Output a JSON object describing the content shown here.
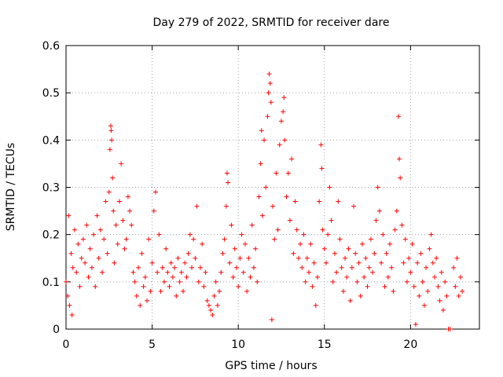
{
  "chart_data": {
    "type": "scatter",
    "title": "Day 279 of 2022, SRMTID for receiver dare",
    "xlabel": "GPS time / hours",
    "ylabel": "SRMTID / TECUs",
    "xlim": [
      0,
      24
    ],
    "ylim": [
      0,
      0.6
    ],
    "xticks": [
      0,
      5,
      10,
      15,
      20
    ],
    "yticks": [
      0,
      0.1,
      0.2,
      0.3,
      0.4,
      0.5,
      0.6
    ],
    "xtick_labels": [
      "0",
      "5",
      "10",
      "15",
      "20"
    ],
    "ytick_labels": [
      "0",
      "0.1",
      "0.2",
      "0.3",
      "0.4",
      "0.5",
      "0.6"
    ],
    "grid": true,
    "marker": "+",
    "color": "#ff0000",
    "series": [
      {
        "name": "SRMTID",
        "points": [
          [
            0.0,
            0.1
          ],
          [
            0.1,
            0.07
          ],
          [
            0.15,
            0.24
          ],
          [
            0.2,
            0.05
          ],
          [
            0.3,
            0.16
          ],
          [
            0.35,
            0.03
          ],
          [
            0.4,
            0.13
          ],
          [
            0.5,
            0.21
          ],
          [
            0.6,
            0.12
          ],
          [
            0.7,
            0.18
          ],
          [
            0.8,
            0.09
          ],
          [
            0.9,
            0.15
          ],
          [
            1.0,
            0.19
          ],
          [
            1.1,
            0.14
          ],
          [
            1.2,
            0.22
          ],
          [
            1.3,
            0.11
          ],
          [
            1.4,
            0.17
          ],
          [
            1.5,
            0.13
          ],
          [
            1.6,
            0.2
          ],
          [
            1.7,
            0.09
          ],
          [
            1.8,
            0.24
          ],
          [
            1.9,
            0.15
          ],
          [
            2.0,
            0.21
          ],
          [
            2.1,
            0.12
          ],
          [
            2.2,
            0.19
          ],
          [
            2.3,
            0.27
          ],
          [
            2.4,
            0.16
          ],
          [
            2.5,
            0.29
          ],
          [
            2.55,
            0.38
          ],
          [
            2.6,
            0.43
          ],
          [
            2.62,
            0.42
          ],
          [
            2.65,
            0.4
          ],
          [
            2.7,
            0.32
          ],
          [
            2.75,
            0.25
          ],
          [
            2.8,
            0.14
          ],
          [
            2.9,
            0.22
          ],
          [
            3.0,
            0.18
          ],
          [
            3.1,
            0.27
          ],
          [
            3.2,
            0.35
          ],
          [
            3.3,
            0.23
          ],
          [
            3.4,
            0.17
          ],
          [
            3.5,
            0.19
          ],
          [
            3.6,
            0.28
          ],
          [
            3.7,
            0.25
          ],
          [
            3.8,
            0.22
          ],
          [
            3.9,
            0.12
          ],
          [
            4.0,
            0.1
          ],
          [
            4.1,
            0.07
          ],
          [
            4.2,
            0.13
          ],
          [
            4.3,
            0.05
          ],
          [
            4.4,
            0.16
          ],
          [
            4.5,
            0.09
          ],
          [
            4.6,
            0.11
          ],
          [
            4.7,
            0.06
          ],
          [
            4.8,
            0.19
          ],
          [
            4.9,
            0.08
          ],
          [
            5.0,
            0.14
          ],
          [
            5.1,
            0.25
          ],
          [
            5.2,
            0.29
          ],
          [
            5.3,
            0.12
          ],
          [
            5.4,
            0.2
          ],
          [
            5.5,
            0.08
          ],
          [
            5.6,
            0.13
          ],
          [
            5.7,
            0.1
          ],
          [
            5.8,
            0.17
          ],
          [
            5.9,
            0.12
          ],
          [
            6.0,
            0.09
          ],
          [
            6.1,
            0.14
          ],
          [
            6.2,
            0.11
          ],
          [
            6.3,
            0.13
          ],
          [
            6.4,
            0.07
          ],
          [
            6.5,
            0.15
          ],
          [
            6.6,
            0.1
          ],
          [
            6.7,
            0.12
          ],
          [
            6.8,
            0.08
          ],
          [
            6.9,
            0.14
          ],
          [
            7.0,
            0.11
          ],
          [
            7.1,
            0.16
          ],
          [
            7.2,
            0.2
          ],
          [
            7.3,
            0.13
          ],
          [
            7.4,
            0.19
          ],
          [
            7.5,
            0.15
          ],
          [
            7.6,
            0.26
          ],
          [
            7.7,
            0.1
          ],
          [
            7.8,
            0.13
          ],
          [
            7.9,
            0.18
          ],
          [
            8.0,
            0.09
          ],
          [
            8.1,
            0.12
          ],
          [
            8.2,
            0.06
          ],
          [
            8.3,
            0.05
          ],
          [
            8.4,
            0.04
          ],
          [
            8.5,
            0.03
          ],
          [
            8.6,
            0.07
          ],
          [
            8.7,
            0.1
          ],
          [
            8.8,
            0.05
          ],
          [
            8.9,
            0.08
          ],
          [
            9.0,
            0.12
          ],
          [
            9.1,
            0.16
          ],
          [
            9.2,
            0.19
          ],
          [
            9.3,
            0.26
          ],
          [
            9.35,
            0.33
          ],
          [
            9.4,
            0.31
          ],
          [
            9.5,
            0.14
          ],
          [
            9.6,
            0.22
          ],
          [
            9.7,
            0.11
          ],
          [
            9.8,
            0.17
          ],
          [
            9.9,
            0.13
          ],
          [
            10.0,
            0.09
          ],
          [
            10.1,
            0.15
          ],
          [
            10.2,
            0.2
          ],
          [
            10.3,
            0.12
          ],
          [
            10.4,
            0.18
          ],
          [
            10.5,
            0.08
          ],
          [
            10.6,
            0.15
          ],
          [
            10.7,
            0.11
          ],
          [
            10.8,
            0.22
          ],
          [
            10.9,
            0.13
          ],
          [
            11.0,
            0.17
          ],
          [
            11.1,
            0.1
          ],
          [
            11.2,
            0.28
          ],
          [
            11.3,
            0.35
          ],
          [
            11.35,
            0.42
          ],
          [
            11.4,
            0.24
          ],
          [
            11.5,
            0.4
          ],
          [
            11.6,
            0.3
          ],
          [
            11.7,
            0.45
          ],
          [
            11.75,
            0.5
          ],
          [
            11.8,
            0.54
          ],
          [
            11.85,
            0.52
          ],
          [
            11.9,
            0.48
          ],
          [
            11.95,
            0.02
          ],
          [
            12.0,
            0.26
          ],
          [
            12.1,
            0.19
          ],
          [
            12.2,
            0.33
          ],
          [
            12.3,
            0.21
          ],
          [
            12.4,
            0.39
          ],
          [
            12.5,
            0.44
          ],
          [
            12.6,
            0.46
          ],
          [
            12.65,
            0.49
          ],
          [
            12.7,
            0.4
          ],
          [
            12.8,
            0.28
          ],
          [
            12.9,
            0.33
          ],
          [
            13.0,
            0.23
          ],
          [
            13.1,
            0.36
          ],
          [
            13.2,
            0.16
          ],
          [
            13.3,
            0.27
          ],
          [
            13.4,
            0.21
          ],
          [
            13.5,
            0.15
          ],
          [
            13.6,
            0.18
          ],
          [
            13.7,
            0.13
          ],
          [
            13.8,
            0.2
          ],
          [
            13.9,
            0.1
          ],
          [
            14.0,
            0.15
          ],
          [
            14.1,
            0.12
          ],
          [
            14.2,
            0.18
          ],
          [
            14.3,
            0.09
          ],
          [
            14.4,
            0.14
          ],
          [
            14.5,
            0.05
          ],
          [
            14.6,
            0.11
          ],
          [
            14.7,
            0.27
          ],
          [
            14.8,
            0.39
          ],
          [
            14.85,
            0.34
          ],
          [
            14.9,
            0.21
          ],
          [
            15.0,
            0.17
          ],
          [
            15.1,
            0.14
          ],
          [
            15.2,
            0.2
          ],
          [
            15.3,
            0.3
          ],
          [
            15.4,
            0.23
          ],
          [
            15.5,
            0.1
          ],
          [
            15.6,
            0.16
          ],
          [
            15.7,
            0.12
          ],
          [
            15.8,
            0.27
          ],
          [
            15.9,
            0.19
          ],
          [
            16.0,
            0.13
          ],
          [
            16.1,
            0.08
          ],
          [
            16.2,
            0.15
          ],
          [
            16.3,
            0.11
          ],
          [
            16.4,
            0.17
          ],
          [
            16.5,
            0.06
          ],
          [
            16.6,
            0.13
          ],
          [
            16.7,
            0.26
          ],
          [
            16.8,
            0.16
          ],
          [
            16.9,
            0.1
          ],
          [
            17.0,
            0.14
          ],
          [
            17.1,
            0.07
          ],
          [
            17.2,
            0.18
          ],
          [
            17.3,
            0.11
          ],
          [
            17.4,
            0.15
          ],
          [
            17.5,
            0.09
          ],
          [
            17.6,
            0.13
          ],
          [
            17.7,
            0.19
          ],
          [
            17.8,
            0.12
          ],
          [
            17.9,
            0.16
          ],
          [
            18.0,
            0.23
          ],
          [
            18.1,
            0.3
          ],
          [
            18.2,
            0.25
          ],
          [
            18.3,
            0.14
          ],
          [
            18.4,
            0.2
          ],
          [
            18.5,
            0.09
          ],
          [
            18.6,
            0.16
          ],
          [
            18.7,
            0.11
          ],
          [
            18.8,
            0.18
          ],
          [
            18.9,
            0.13
          ],
          [
            19.0,
            0.08
          ],
          [
            19.1,
            0.21
          ],
          [
            19.2,
            0.25
          ],
          [
            19.3,
            0.45
          ],
          [
            19.35,
            0.36
          ],
          [
            19.4,
            0.32
          ],
          [
            19.5,
            0.22
          ],
          [
            19.6,
            0.14
          ],
          [
            19.7,
            0.19
          ],
          [
            19.8,
            0.1
          ],
          [
            19.9,
            0.15
          ],
          [
            20.0,
            0.12
          ],
          [
            20.1,
            0.18
          ],
          [
            20.2,
            0.09
          ],
          [
            20.3,
            0.01
          ],
          [
            20.4,
            0.14
          ],
          [
            20.5,
            0.07
          ],
          [
            20.6,
            0.16
          ],
          [
            20.7,
            0.1
          ],
          [
            20.8,
            0.05
          ],
          [
            20.9,
            0.13
          ],
          [
            21.0,
            0.08
          ],
          [
            21.1,
            0.17
          ],
          [
            21.2,
            0.2
          ],
          [
            21.3,
            0.14
          ],
          [
            21.4,
            0.11
          ],
          [
            21.5,
            0.15
          ],
          [
            21.6,
            0.09
          ],
          [
            21.7,
            0.06
          ],
          [
            21.8,
            0.12
          ],
          [
            21.9,
            0.04
          ],
          [
            22.0,
            0.1
          ],
          [
            22.1,
            0.07
          ],
          [
            22.2,
            0.0
          ],
          [
            22.3,
            0.0
          ],
          [
            22.5,
            0.13
          ],
          [
            22.6,
            0.09
          ],
          [
            22.7,
            0.15
          ],
          [
            22.8,
            0.07
          ],
          [
            22.9,
            0.11
          ],
          [
            23.0,
            0.08
          ]
        ]
      }
    ]
  }
}
